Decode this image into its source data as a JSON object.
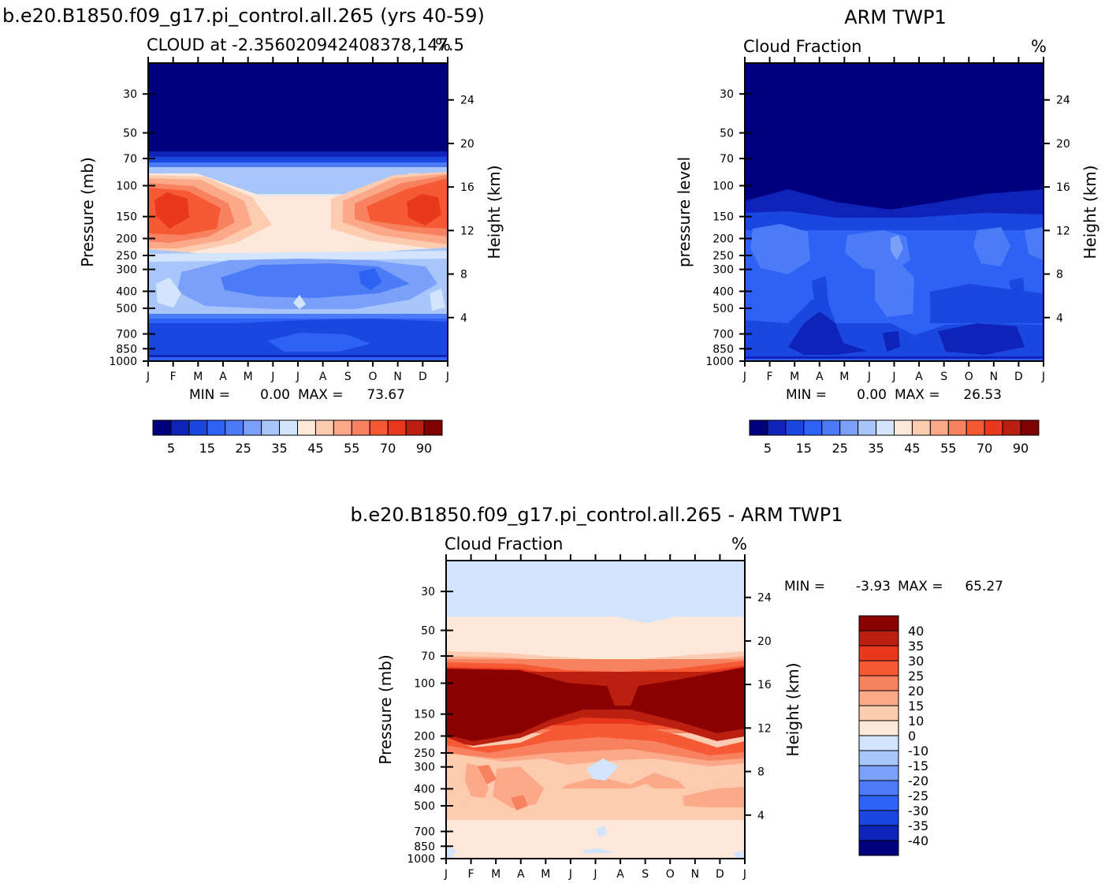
{
  "colors": {
    "seq": [
      "#00007f",
      "#0f23b9",
      "#1947e0",
      "#2e62f5",
      "#4b7bf7",
      "#7aa0f9",
      "#a9c6fb",
      "#d2e5fd",
      "#fde8da",
      "#fccbb0",
      "#fba988",
      "#f88260",
      "#f55a34",
      "#e8391e",
      "#bb1f10",
      "#7f0000"
    ],
    "diff": [
      "#00007f",
      "#0f23b9",
      "#1947e0",
      "#2e62f5",
      "#4b7bf7",
      "#7aa0f9",
      "#a9c6fb",
      "#d2e5fd",
      "#fde8da",
      "#fccbb0",
      "#fba988",
      "#f88260",
      "#f55a34",
      "#e8391e",
      "#bb1f10",
      "#8b0000"
    ]
  },
  "chart_data": [
    {
      "type": "heatmap",
      "id": "model",
      "title": "b.e20.B1850.f09_g17.pi_control.all.265 (yrs 40-59)",
      "subtitle_left": "CLOUD at -2.356020942408378,147.5",
      "subtitle_right": "%",
      "xlabel": "",
      "ylabel": "Pressure (mb)",
      "ylabel_right": "Height (km)",
      "x_ticks": [
        "J",
        "F",
        "M",
        "A",
        "M",
        "J",
        "J",
        "A",
        "S",
        "O",
        "N",
        "D",
        "J"
      ],
      "p_ticks": [
        30,
        50,
        70,
        100,
        150,
        200,
        250,
        300,
        400,
        500,
        700,
        850,
        1000
      ],
      "h_ticks": [
        24,
        20,
        16,
        12,
        8,
        4
      ],
      "min_label": "MIN =",
      "min_value": "0.00",
      "max_label": "MAX =",
      "max_value": "73.67",
      "colorbar_labels": [
        "5",
        "15",
        "25",
        "35",
        "45",
        "55",
        "70",
        "90"
      ]
    },
    {
      "type": "heatmap",
      "id": "obs",
      "title": "ARM TWP1",
      "subtitle_left": "Cloud Fraction",
      "subtitle_right": "%",
      "ylabel": "pressure level",
      "ylabel_right": "Height (km)",
      "x_ticks": [
        "J",
        "F",
        "M",
        "A",
        "M",
        "J",
        "J",
        "A",
        "S",
        "O",
        "N",
        "D",
        "J"
      ],
      "p_ticks": [
        30,
        50,
        70,
        100,
        150,
        200,
        250,
        300,
        400,
        500,
        700,
        850,
        1000
      ],
      "h_ticks": [
        24,
        20,
        16,
        12,
        8,
        4
      ],
      "min_label": "MIN =",
      "min_value": "0.00",
      "max_label": "MAX =",
      "max_value": "26.53",
      "colorbar_labels": [
        "5",
        "15",
        "25",
        "35",
        "45",
        "55",
        "70",
        "90"
      ]
    },
    {
      "type": "heatmap",
      "id": "diff",
      "title": "b.e20.B1850.f09_g17.pi_control.all.265 - ARM TWP1",
      "subtitle_left": "Cloud Fraction",
      "subtitle_right": "%",
      "ylabel": "Pressure (mb)",
      "ylabel_right": "Height (km)",
      "x_ticks": [
        "J",
        "F",
        "M",
        "A",
        "M",
        "J",
        "J",
        "A",
        "S",
        "O",
        "N",
        "D",
        "J"
      ],
      "p_ticks": [
        30,
        50,
        70,
        100,
        150,
        200,
        250,
        300,
        400,
        500,
        700,
        850,
        1000
      ],
      "h_ticks": [
        24,
        20,
        16,
        12,
        8,
        4
      ],
      "min_label": "MIN =",
      "min_value": "-3.93",
      "max_label": "MAX =",
      "max_value": "65.27",
      "colorbar_labels": [
        "40",
        "35",
        "30",
        "25",
        "20",
        "15",
        "10",
        "0",
        "-10",
        "-15",
        "-20",
        "-25",
        "-30",
        "-35",
        "-40"
      ]
    }
  ]
}
